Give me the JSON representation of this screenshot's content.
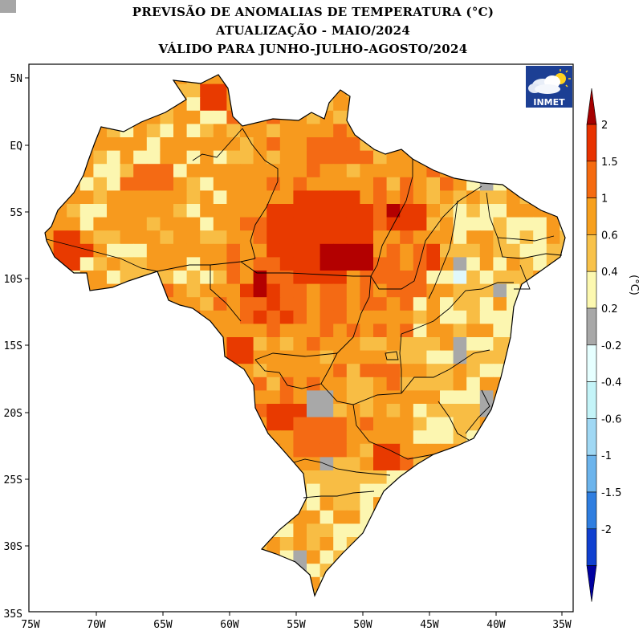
{
  "header": {
    "title_lines": [
      "PREVISÃO DE ANOMALIAS DE TEMPERATURA (°C)",
      "ATUALIZAÇÃO - MAIO/2024",
      "VÁLIDO PARA JUNHO-JULHO-AGOSTO/2024"
    ]
  },
  "logo": {
    "text": "INMET",
    "icon": "cloud-sun-icon"
  },
  "map": {
    "lat_labels": [
      "5N",
      "EQ",
      "5S",
      "10S",
      "15S",
      "20S",
      "25S",
      "30S",
      "35S"
    ],
    "lon_labels": [
      "75W",
      "70W",
      "65W",
      "60W",
      "55W",
      "50W",
      "45W",
      "40W",
      "35W"
    ]
  },
  "colorbar": {
    "unit": "(°C)",
    "labels": [
      "2",
      "1.5",
      "1",
      "0.6",
      "0.4",
      "0.2",
      "-0.2",
      "-0.4",
      "-0.6",
      "-1",
      "-1.5",
      "-2"
    ],
    "colors": [
      "#a50000",
      "#e83200",
      "#f56a10",
      "#f7a01e",
      "#f8c24a",
      "#fcf8b0",
      "#a8a8a8",
      "#e6ffff",
      "#c4f4f8",
      "#a0d8f4",
      "#6cb4ec",
      "#2f7ee0",
      "#1040d0",
      "#0000a0"
    ]
  }
}
